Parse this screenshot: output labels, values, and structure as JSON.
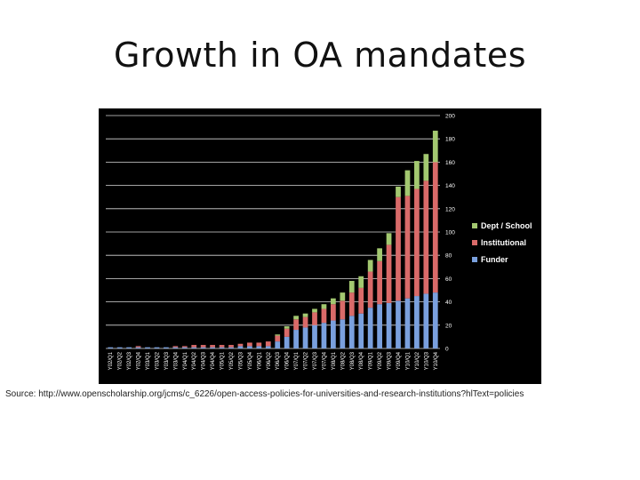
{
  "slide": {
    "title": "Growth in OA mandates",
    "source": "Source: http://www.openscholarship.org/jcms/c_6226/open-access-policies-for-universities-and-research-institutions?hlText=policies"
  },
  "chart_data": {
    "type": "bar",
    "stacked": true,
    "categories": [
      "Y02/Q1",
      "Y02/Q2",
      "Y02/Q3",
      "Y02/Q4",
      "Y03/Q1",
      "Y03/Q2",
      "Y03/Q3",
      "Y03/Q4",
      "Y04/Q1",
      "Y04/Q2",
      "Y04/Q3",
      "Y04/Q4",
      "Y05/Q1",
      "Y05/Q2",
      "Y05/Q3",
      "Y05/Q4",
      "Y06/Q1",
      "Y06/Q2",
      "Y06/Q3",
      "Y06/Q4",
      "Y07/Q1",
      "Y07/Q2",
      "Y07/Q3",
      "Y07/Q4",
      "Y08/Q1",
      "Y08/Q2",
      "Y08/Q3",
      "Y08/Q4",
      "Y09/Q1",
      "Y09/Q2",
      "Y09/Q3",
      "Y09/Q4",
      "Y10/Q1",
      "Y10/Q2",
      "Y10/Q3",
      "Y10/Q4"
    ],
    "series": [
      {
        "name": "Funder",
        "color": "#7aa0de",
        "values": [
          1,
          1,
          1,
          1,
          1,
          1,
          1,
          1,
          1,
          1,
          1,
          1,
          1,
          1,
          2,
          2,
          2,
          2,
          6,
          10,
          16,
          18,
          20,
          22,
          24,
          25,
          28,
          30,
          35,
          38,
          39,
          41,
          43,
          45,
          47,
          48
        ]
      },
      {
        "name": "Institutional",
        "color": "#d96a69",
        "values": [
          0,
          0,
          0,
          1,
          0,
          0,
          0,
          1,
          1,
          2,
          2,
          2,
          2,
          2,
          2,
          3,
          3,
          4,
          5,
          7,
          9,
          9,
          11,
          12,
          14,
          16,
          20,
          22,
          31,
          37,
          50,
          89,
          88,
          92,
          97,
          112
        ]
      },
      {
        "name": "Dept / School",
        "color": "#a3c870",
        "values": [
          0,
          0,
          0,
          0,
          0,
          0,
          0,
          0,
          0,
          0,
          0,
          0,
          0,
          0,
          0,
          0,
          0,
          0,
          1,
          2,
          3,
          3,
          3,
          4,
          5,
          7,
          10,
          10,
          10,
          11,
          10,
          9,
          22,
          24,
          23,
          27
        ]
      }
    ],
    "ylim": [
      0,
      200
    ],
    "yticks": [
      0,
      20,
      40,
      60,
      80,
      100,
      120,
      140,
      160,
      180,
      200
    ],
    "grid": true,
    "legend_position": "right",
    "background": "#000000",
    "text_color": "#ffffff"
  }
}
